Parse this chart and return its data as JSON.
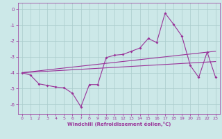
{
  "title": "",
  "xlabel": "Windchill (Refroidissement éolien,°C)",
  "ylabel": "",
  "bg_color": "#cce8e8",
  "grid_color": "#aacccc",
  "line_color": "#993399",
  "xlim": [
    -0.5,
    23.5
  ],
  "ylim": [
    -6.6,
    0.4
  ],
  "xticks": [
    0,
    1,
    2,
    3,
    4,
    5,
    6,
    7,
    8,
    9,
    10,
    11,
    12,
    13,
    14,
    15,
    16,
    17,
    18,
    19,
    20,
    21,
    22,
    23
  ],
  "yticks": [
    0,
    -1,
    -2,
    -3,
    -4,
    -5,
    -6
  ],
  "series1_x": [
    0,
    1,
    2,
    3,
    4,
    5,
    6,
    7,
    8,
    9,
    10,
    11,
    12,
    13,
    14,
    15,
    16,
    17,
    18,
    19,
    20,
    21,
    22,
    23
  ],
  "series1_y": [
    -4.0,
    -4.15,
    -4.7,
    -4.8,
    -4.9,
    -4.95,
    -5.3,
    -6.15,
    -4.75,
    -4.75,
    -3.05,
    -2.9,
    -2.85,
    -2.65,
    -2.45,
    -1.85,
    -2.1,
    -0.25,
    -0.95,
    -1.7,
    -3.55,
    -4.3,
    -2.7,
    -4.3
  ],
  "series2_x": [
    0,
    23
  ],
  "series2_y": [
    -4.0,
    -2.65
  ],
  "series3_x": [
    0,
    23
  ],
  "series3_y": [
    -4.0,
    -3.3
  ]
}
